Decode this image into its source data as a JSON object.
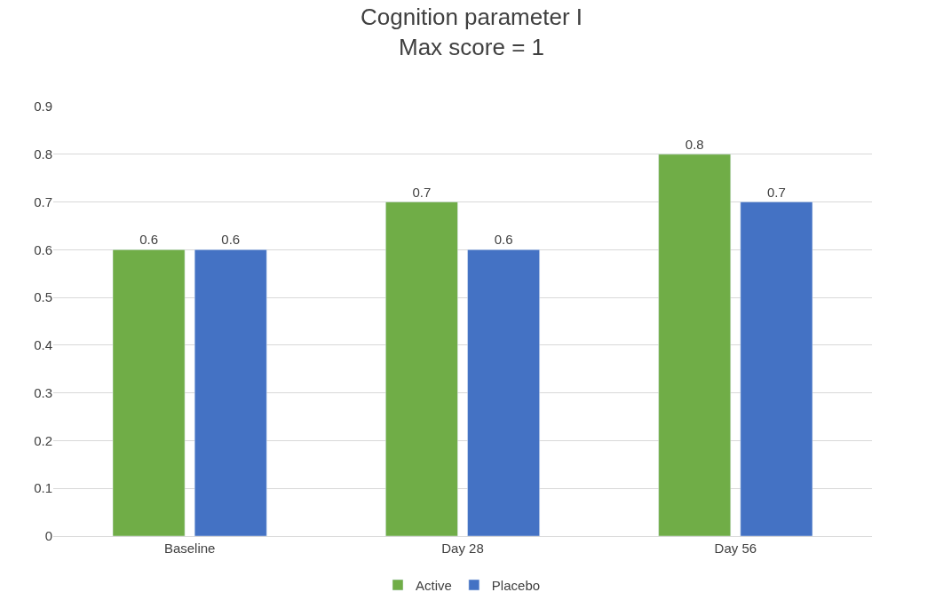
{
  "chart_data": {
    "type": "bar",
    "title": "Cognition parameter I\nMax score = 1",
    "categories": [
      "Baseline",
      "Day 28",
      "Day 56"
    ],
    "series": [
      {
        "name": "Active",
        "color": "#70ad47",
        "values": [
          0.6,
          0.7,
          0.8
        ]
      },
      {
        "name": "Placebo",
        "color": "#4472c4",
        "values": [
          0.6,
          0.6,
          0.7
        ]
      }
    ],
    "ylim": [
      0,
      0.9
    ],
    "yticks": [
      0,
      0.1,
      0.2,
      0.3,
      0.4,
      0.5,
      0.6,
      0.7,
      0.8,
      0.9
    ],
    "grid": "y",
    "legend": "bottom",
    "data_labels": true
  }
}
